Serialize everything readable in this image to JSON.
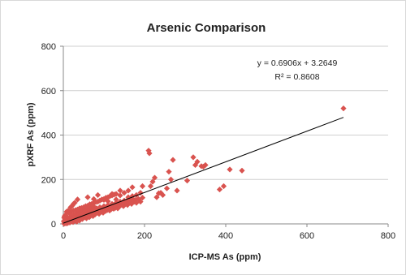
{
  "chart_data": {
    "type": "scatter",
    "title": "Arsenic Comparison",
    "xlabel": "ICP-MS  As (ppm)",
    "ylabel": "pXRF As  (ppm)",
    "xlim": [
      0,
      800
    ],
    "ylim": [
      0,
      800
    ],
    "xticks": [
      0,
      200,
      400,
      600,
      800
    ],
    "yticks": [
      0,
      200,
      400,
      600,
      800
    ],
    "grid": "horizontal",
    "legend": "none",
    "marker_color": "#d9534f",
    "trendline": {
      "slope": 0.6906,
      "intercept": 3.2649,
      "equation_text": "y = 0.6906x + 3.2649",
      "r2_text": "R² = 0.8608",
      "x_range": [
        0,
        690
      ]
    },
    "points": [
      [
        2,
        1
      ],
      [
        3,
        5
      ],
      [
        4,
        8
      ],
      [
        5,
        3
      ],
      [
        6,
        12
      ],
      [
        7,
        6
      ],
      [
        8,
        2
      ],
      [
        9,
        15
      ],
      [
        10,
        10
      ],
      [
        11,
        4
      ],
      [
        12,
        20
      ],
      [
        13,
        8
      ],
      [
        14,
        14
      ],
      [
        15,
        25
      ],
      [
        16,
        6
      ],
      [
        17,
        18
      ],
      [
        18,
        10
      ],
      [
        19,
        30
      ],
      [
        20,
        22
      ],
      [
        21,
        12
      ],
      [
        22,
        35
      ],
      [
        23,
        16
      ],
      [
        24,
        8
      ],
      [
        25,
        28
      ],
      [
        26,
        40
      ],
      [
        27,
        20
      ],
      [
        28,
        14
      ],
      [
        29,
        33
      ],
      [
        30,
        24
      ],
      [
        31,
        45
      ],
      [
        32,
        18
      ],
      [
        33,
        10
      ],
      [
        34,
        38
      ],
      [
        35,
        26
      ],
      [
        36,
        50
      ],
      [
        37,
        30
      ],
      [
        38,
        20
      ],
      [
        39,
        42
      ],
      [
        40,
        15
      ],
      [
        41,
        35
      ],
      [
        42,
        55
      ],
      [
        43,
        25
      ],
      [
        44,
        40
      ],
      [
        45,
        30
      ],
      [
        46,
        60
      ],
      [
        47,
        22
      ],
      [
        48,
        45
      ],
      [
        49,
        35
      ],
      [
        50,
        28
      ],
      [
        51,
        52
      ],
      [
        52,
        40
      ],
      [
        53,
        65
      ],
      [
        54,
        30
      ],
      [
        55,
        48
      ],
      [
        56,
        38
      ],
      [
        57,
        25
      ],
      [
        58,
        58
      ],
      [
        59,
        44
      ],
      [
        60,
        35
      ],
      [
        61,
        70
      ],
      [
        62,
        50
      ],
      [
        63,
        40
      ],
      [
        64,
        30
      ],
      [
        65,
        62
      ],
      [
        66,
        48
      ],
      [
        67,
        55
      ],
      [
        68,
        38
      ],
      [
        69,
        75
      ],
      [
        70,
        52
      ],
      [
        71,
        45
      ],
      [
        72,
        60
      ],
      [
        73,
        35
      ],
      [
        74,
        80
      ],
      [
        75,
        55
      ],
      [
        76,
        48
      ],
      [
        77,
        65
      ],
      [
        78,
        42
      ],
      [
        80,
        58
      ],
      [
        82,
        70
      ],
      [
        84,
        50
      ],
      [
        86,
        62
      ],
      [
        88,
        45
      ],
      [
        90,
        75
      ],
      [
        92,
        60
      ],
      [
        94,
        55
      ],
      [
        96,
        68
      ],
      [
        98,
        50
      ],
      [
        100,
        80
      ],
      [
        102,
        65
      ],
      [
        104,
        58
      ],
      [
        106,
        72
      ],
      [
        108,
        62
      ],
      [
        110,
        85
      ],
      [
        112,
        70
      ],
      [
        114,
        60
      ],
      [
        116,
        78
      ],
      [
        118,
        66
      ],
      [
        120,
        90
      ],
      [
        122,
        75
      ],
      [
        124,
        68
      ],
      [
        126,
        82
      ],
      [
        128,
        72
      ],
      [
        130,
        95
      ],
      [
        132,
        80
      ],
      [
        134,
        70
      ],
      [
        136,
        88
      ],
      [
        138,
        78
      ],
      [
        140,
        100
      ],
      [
        142,
        85
      ],
      [
        145,
        92
      ],
      [
        148,
        80
      ],
      [
        150,
        105
      ],
      [
        152,
        90
      ],
      [
        155,
        98
      ],
      [
        158,
        85
      ],
      [
        160,
        110
      ],
      [
        162,
        95
      ],
      [
        165,
        102
      ],
      [
        168,
        90
      ],
      [
        170,
        115
      ],
      [
        175,
        100
      ],
      [
        178,
        108
      ],
      [
        180,
        95
      ],
      [
        185,
        112
      ],
      [
        190,
        100
      ],
      [
        195,
        118
      ],
      [
        15,
        48
      ],
      [
        20,
        55
      ],
      [
        25,
        60
      ],
      [
        30,
        62
      ],
      [
        35,
        65
      ],
      [
        40,
        70
      ],
      [
        45,
        72
      ],
      [
        50,
        75
      ],
      [
        55,
        80
      ],
      [
        60,
        82
      ],
      [
        65,
        88
      ],
      [
        70,
        90
      ],
      [
        75,
        95
      ],
      [
        80,
        98
      ],
      [
        85,
        100
      ],
      [
        90,
        105
      ],
      [
        95,
        110
      ],
      [
        100,
        112
      ],
      [
        105,
        118
      ],
      [
        110,
        120
      ],
      [
        115,
        125
      ],
      [
        120,
        128
      ],
      [
        125,
        132
      ],
      [
        130,
        135
      ],
      [
        35,
        110
      ],
      [
        60,
        120
      ],
      [
        75,
        112
      ],
      [
        85,
        130
      ],
      [
        100,
        108
      ],
      [
        110,
        102
      ],
      [
        120,
        135
      ],
      [
        130,
        110
      ],
      [
        140,
        128
      ],
      [
        150,
        140
      ],
      [
        160,
        120
      ],
      [
        170,
        125
      ],
      [
        180,
        130
      ],
      [
        190,
        140
      ],
      [
        195,
        170
      ],
      [
        170,
        165
      ],
      [
        160,
        150
      ],
      [
        140,
        150
      ],
      [
        5,
        40
      ],
      [
        8,
        55
      ],
      [
        10,
        30
      ],
      [
        12,
        60
      ],
      [
        18,
        75
      ],
      [
        22,
        82
      ],
      [
        25,
        90
      ],
      [
        28,
        95
      ],
      [
        4,
        22
      ],
      [
        3,
        35
      ],
      [
        1,
        12
      ],
      [
        2,
        28
      ],
      [
        210,
        330
      ],
      [
        212,
        318
      ],
      [
        215,
        170
      ],
      [
        220,
        190
      ],
      [
        225,
        208
      ],
      [
        230,
        120
      ],
      [
        235,
        138
      ],
      [
        240,
        140
      ],
      [
        245,
        130
      ],
      [
        255,
        160
      ],
      [
        260,
        235
      ],
      [
        265,
        200
      ],
      [
        270,
        288
      ],
      [
        280,
        150
      ],
      [
        305,
        195
      ],
      [
        320,
        300
      ],
      [
        325,
        265
      ],
      [
        330,
        280
      ],
      [
        340,
        260
      ],
      [
        345,
        258
      ],
      [
        350,
        265
      ],
      [
        385,
        155
      ],
      [
        395,
        170
      ],
      [
        410,
        245
      ],
      [
        440,
        240
      ],
      [
        690,
        520
      ]
    ]
  }
}
